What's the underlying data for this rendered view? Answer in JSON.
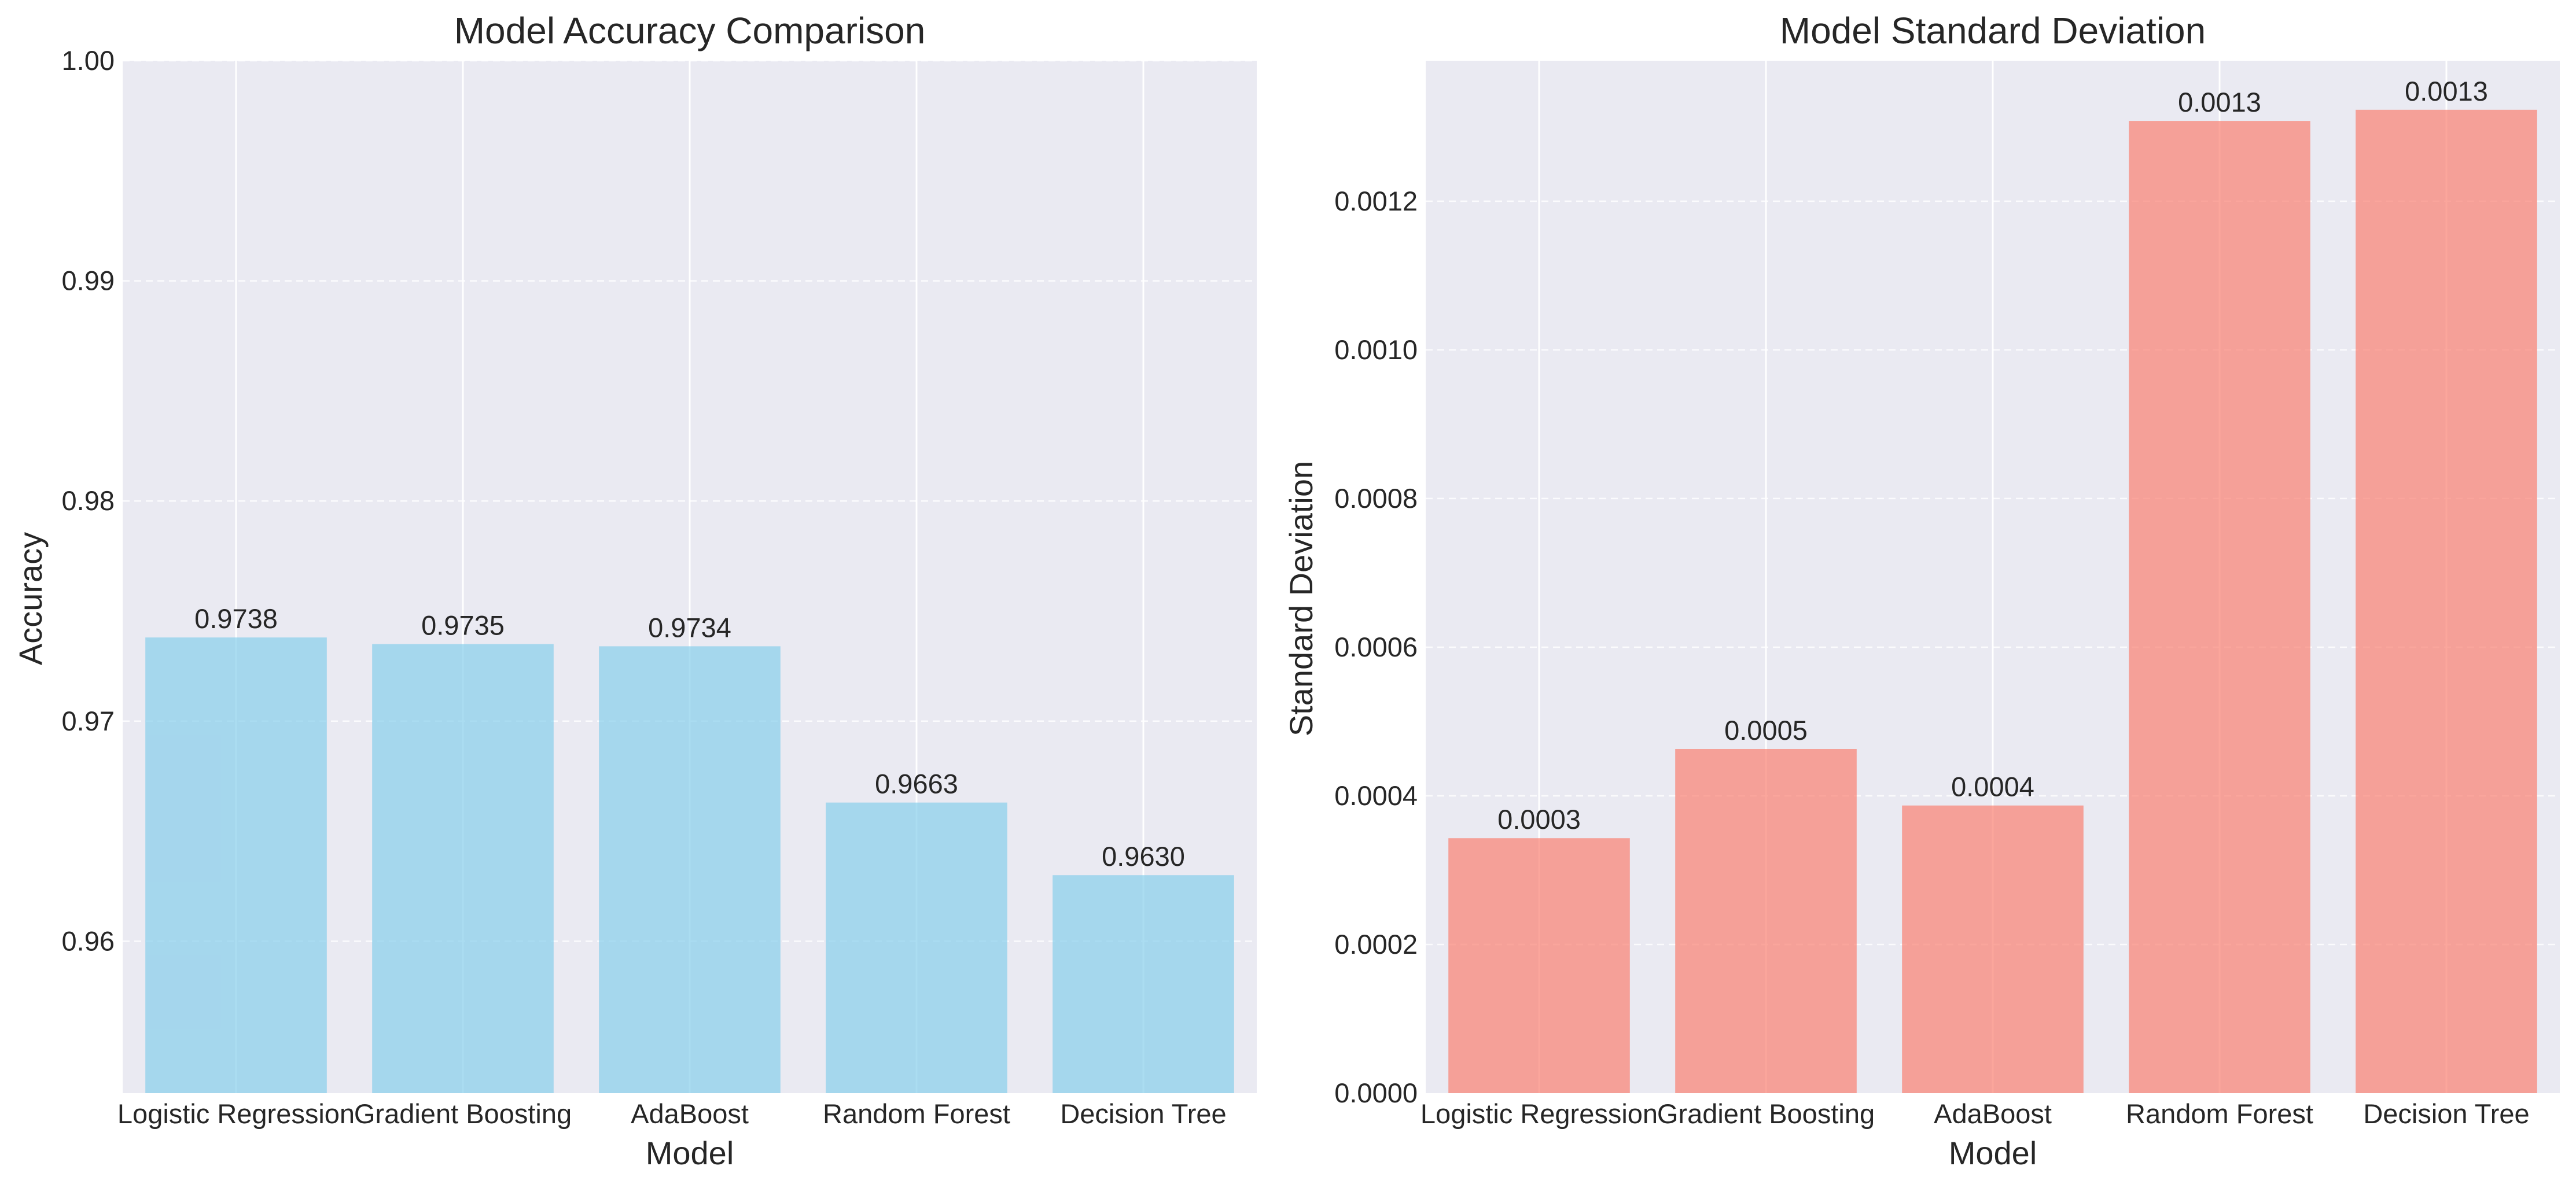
{
  "chart_data": [
    {
      "type": "bar",
      "title": "Model Accuracy Comparison",
      "xlabel": "Model",
      "ylabel": "Accuracy",
      "categories": [
        "Logistic Regression",
        "Gradient Boosting",
        "AdaBoost",
        "Random Forest",
        "Decision Tree"
      ],
      "values": [
        0.9738,
        0.9735,
        0.9734,
        0.9663,
        0.963
      ],
      "value_labels": [
        "0.9738",
        "0.9735",
        "0.9734",
        "0.9663",
        "0.9630"
      ],
      "ylim": [
        0.9531,
        1.0
      ],
      "yticks": [
        0.96,
        0.97,
        0.98,
        0.99,
        1.0
      ],
      "ytick_labels": [
        "0.96",
        "0.97",
        "0.98",
        "0.99",
        "1.00"
      ],
      "grid": true,
      "color": "#87ceeb"
    },
    {
      "type": "bar",
      "title": "Model Standard Deviation",
      "xlabel": "Model",
      "ylabel": "Standard Deviation",
      "categories": [
        "Logistic Regression",
        "Gradient Boosting",
        "AdaBoost",
        "Random Forest",
        "Decision Tree"
      ],
      "values": [
        0.000343,
        0.000463,
        0.000387,
        0.001308,
        0.001323
      ],
      "value_labels": [
        "0.0003",
        "0.0005",
        "0.0004",
        "0.0013",
        "0.0013"
      ],
      "ylim": [
        0.0,
        0.001389
      ],
      "yticks": [
        0.0,
        0.0002,
        0.0004,
        0.0006,
        0.0008,
        0.001,
        0.0012
      ],
      "ytick_labels": [
        "0.0000",
        "0.0002",
        "0.0004",
        "0.0006",
        "0.0008",
        "0.0010",
        "0.0012"
      ],
      "grid": true,
      "color": "#fa8072"
    }
  ]
}
